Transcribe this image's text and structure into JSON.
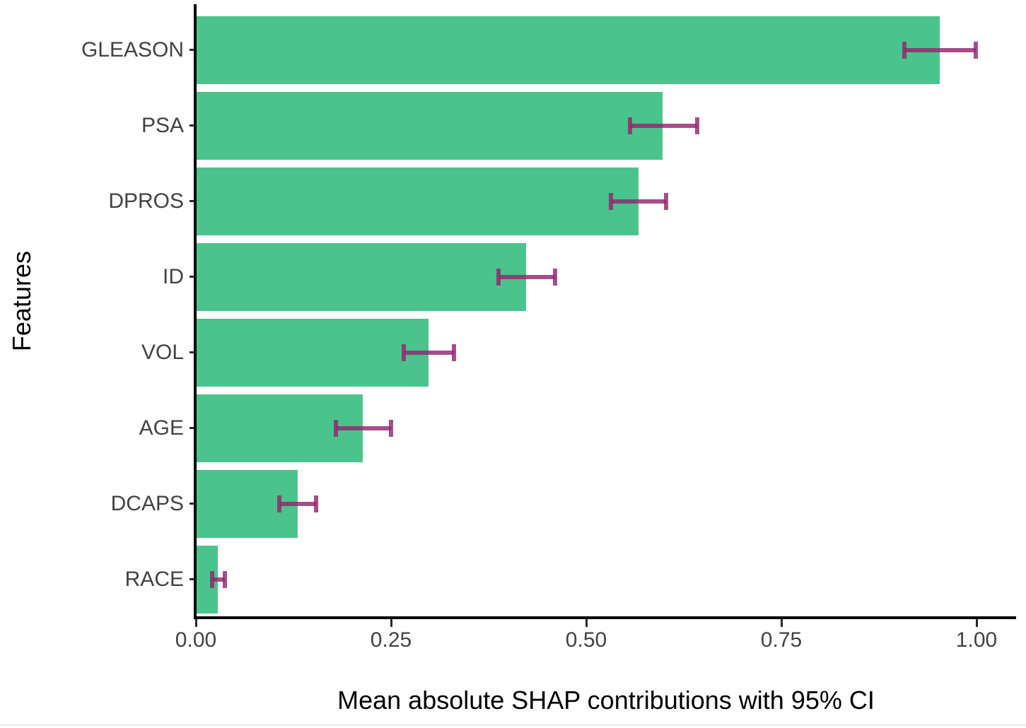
{
  "figure": {
    "background_color": "#ffffff",
    "bottom_divider_color": "#ededed"
  },
  "chart_data": {
    "type": "bar",
    "orientation": "horizontal",
    "title": "",
    "xlabel": "Mean absolute SHAP contributions with 95% CI",
    "ylabel": "Features",
    "xlim": [
      0.0,
      1.05
    ],
    "grid": false,
    "legend_position": "none",
    "bar_color": "#4bc38c",
    "error_bar_color": "rgba(146, 39, 110, 0.82)",
    "axis_line_color": "#000000",
    "tick_mark_color": "#2b2b2b",
    "tick_label_color": "#424242",
    "categories": [
      "GLEASON",
      "PSA",
      "DPROS",
      "ID",
      "VOL",
      "AGE",
      "DCAPS",
      "RACE"
    ],
    "x_ticks": [
      {
        "value": 0.0,
        "label": "0.00"
      },
      {
        "value": 0.25,
        "label": "0.25"
      },
      {
        "value": 0.5,
        "label": "0.50"
      },
      {
        "value": 0.75,
        "label": "0.75"
      },
      {
        "value": 1.0,
        "label": "1.00"
      }
    ],
    "series": [
      {
        "name": "Mean absolute SHAP contribution with 95% CI",
        "points": [
          {
            "feature": "GLEASON",
            "mean": 0.953,
            "ci_low": 0.908,
            "ci_high": 0.999
          },
          {
            "feature": "PSA",
            "mean": 0.598,
            "ci_low": 0.556,
            "ci_high": 0.642
          },
          {
            "feature": "DPROS",
            "mean": 0.567,
            "ci_low": 0.532,
            "ci_high": 0.602
          },
          {
            "feature": "ID",
            "mean": 0.423,
            "ci_low": 0.388,
            "ci_high": 0.46
          },
          {
            "feature": "VOL",
            "mean": 0.298,
            "ci_low": 0.266,
            "ci_high": 0.331
          },
          {
            "feature": "AGE",
            "mean": 0.214,
            "ci_low": 0.179,
            "ci_high": 0.25
          },
          {
            "feature": "DCAPS",
            "mean": 0.13,
            "ci_low": 0.107,
            "ci_high": 0.154
          },
          {
            "feature": "RACE",
            "mean": 0.028,
            "ci_low": 0.021,
            "ci_high": 0.037
          }
        ]
      }
    ]
  }
}
